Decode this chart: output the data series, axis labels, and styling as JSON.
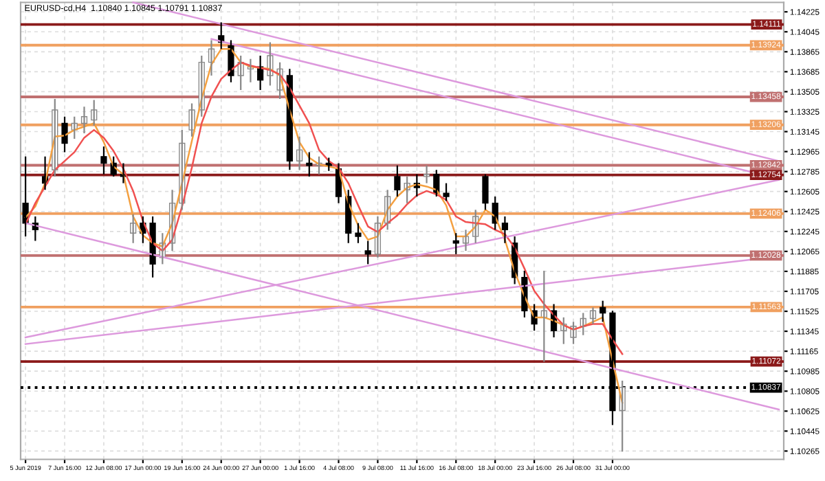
{
  "chart_data": {
    "type": "candlestick",
    "title": "EURUSD-cd,H4  1.10840 1.10845 1.10791 1.10837",
    "categories": [
      "5 Jun 2019",
      null,
      null,
      null,
      "7 Jun 16:00",
      null,
      null,
      null,
      "12 Jun 08:00",
      null,
      null,
      null,
      "17 Jun 00:00",
      null,
      null,
      null,
      "19 Jun 16:00",
      null,
      null,
      null,
      "24 Jun 00:00",
      null,
      null,
      null,
      "27 Jun 00:00",
      null,
      null,
      null,
      "1 Jul 16:00",
      null,
      null,
      null,
      "4 Jul 08:00",
      null,
      null,
      null,
      "9 Jul 08:00",
      null,
      null,
      null,
      "11 Jul 16:00",
      null,
      null,
      null,
      "16 Jul 08:00",
      null,
      null,
      null,
      "18 Jul 00:00",
      null,
      null,
      null,
      "23 Jul 16:00",
      null,
      null,
      null,
      "26 Jul 08:00",
      null,
      null,
      null,
      "31 Jul 00:00",
      null,
      null,
      null,
      null,
      null,
      null,
      null,
      null,
      null,
      null,
      null,
      null,
      null,
      null,
      null,
      null,
      null
    ],
    "ohlc": [
      [
        1.125,
        1.1292,
        1.122,
        1.1232
      ],
      [
        1.1232,
        1.1238,
        1.1216,
        1.1226
      ],
      [
        1.1274,
        1.1292,
        1.1262,
        1.1268
      ],
      [
        1.128,
        1.1344,
        1.1274,
        1.1334
      ],
      [
        1.1322,
        1.1328,
        1.1296,
        1.1304
      ],
      [
        1.1316,
        1.1328,
        1.1308,
        1.1322
      ],
      [
        1.1322,
        1.1337,
        1.1313,
        1.1328
      ],
      [
        1.1325,
        1.1343,
        1.132,
        1.1334
      ],
      [
        1.1292,
        1.1301,
        1.1276,
        1.1286
      ],
      [
        1.1286,
        1.1292,
        1.1274,
        1.1276
      ],
      [
        1.1276,
        1.1286,
        1.1268,
        1.1274
      ],
      [
        1.1223,
        1.124,
        1.1214,
        1.1232
      ],
      [
        1.1232,
        1.1238,
        1.1214,
        1.1223
      ],
      [
        1.1232,
        1.1238,
        1.1183,
        1.1195
      ],
      [
        1.1201,
        1.1223,
        1.1195,
        1.1214
      ],
      [
        1.1214,
        1.1262,
        1.1207,
        1.125
      ],
      [
        1.125,
        1.1316,
        1.1244,
        1.1304
      ],
      [
        1.1316,
        1.134,
        1.131,
        1.1334
      ],
      [
        1.1334,
        1.1383,
        1.1328,
        1.1377
      ],
      [
        1.1377,
        1.1397,
        1.1365,
        1.1389
      ],
      [
        1.1401,
        1.1413,
        1.1389,
        1.1395
      ],
      [
        1.1392,
        1.1397,
        1.1359,
        1.1365
      ],
      [
        1.1365,
        1.1383,
        1.1352,
        1.1377
      ],
      [
        1.1371,
        1.138,
        1.1359,
        1.1373
      ],
      [
        1.1373,
        1.1383,
        1.1352,
        1.1361
      ],
      [
        1.1365,
        1.1395,
        1.1356,
        1.1383
      ],
      [
        1.1352,
        1.1377,
        1.1344,
        1.1371
      ],
      [
        1.1365,
        1.1371,
        1.128,
        1.1288
      ],
      [
        1.1288,
        1.131,
        1.128,
        1.1298
      ],
      [
        1.1286,
        1.1296,
        1.1274,
        1.1284
      ],
      [
        1.1284,
        1.1292,
        1.1276,
        1.1286
      ],
      [
        1.1286,
        1.1291,
        1.1279,
        1.1284
      ],
      [
        1.1281,
        1.1286,
        1.125,
        1.1256
      ],
      [
        1.1256,
        1.1262,
        1.1214,
        1.1223
      ],
      [
        1.1223,
        1.1232,
        1.1214,
        1.122
      ],
      [
        1.1207,
        1.1216,
        1.1195,
        1.1204
      ],
      [
        1.1204,
        1.1238,
        1.1201,
        1.1232
      ],
      [
        1.1232,
        1.1262,
        1.1226,
        1.1256
      ],
      [
        1.1274,
        1.1284,
        1.1256,
        1.1262
      ],
      [
        1.1262,
        1.1274,
        1.125,
        1.1268
      ],
      [
        1.1268,
        1.1276,
        1.1256,
        1.1264
      ],
      [
        1.1274,
        1.1284,
        1.1268,
        1.1276
      ],
      [
        1.1276,
        1.128,
        1.1256,
        1.1259
      ],
      [
        1.1259,
        1.1268,
        1.1252,
        1.1256
      ],
      [
        1.1216,
        1.1223,
        1.1204,
        1.1214
      ],
      [
        1.1214,
        1.1226,
        1.1207,
        1.122
      ],
      [
        1.122,
        1.1244,
        1.1214,
        1.1238
      ],
      [
        1.1274,
        1.1276,
        1.1244,
        1.125
      ],
      [
        1.125,
        1.1256,
        1.1226,
        1.1232
      ],
      [
        1.1232,
        1.1238,
        1.1214,
        1.1226
      ],
      [
        1.1214,
        1.122,
        1.1177,
        1.1183
      ],
      [
        1.1183,
        1.1189,
        1.1147,
        1.1153
      ],
      [
        1.1153,
        1.1159,
        1.1135,
        1.1141
      ],
      [
        1.1147,
        1.1189,
        1.1107,
        1.1153
      ],
      [
        1.1153,
        1.1159,
        1.1129,
        1.1135
      ],
      [
        1.1135,
        1.1147,
        1.1123,
        1.1141
      ],
      [
        1.1129,
        1.1143,
        1.1123,
        1.1139
      ],
      [
        1.1139,
        1.1151,
        1.1131,
        1.1146
      ],
      [
        1.1146,
        1.1156,
        1.1141,
        1.1153
      ],
      [
        1.1156,
        1.1162,
        1.1143,
        1.1151
      ],
      [
        1.1151,
        1.1153,
        1.105,
        1.1063
      ],
      [
        1.1063,
        1.109,
        1.1026,
        1.1084
      ],
      null,
      null,
      null,
      null,
      null,
      null,
      null,
      null,
      null,
      null,
      null,
      null,
      null,
      null,
      null,
      null
    ],
    "series": [
      {
        "type": "line",
        "color": "#f4a040",
        "values": [
          1.1237,
          1.1247,
          1.1268,
          1.131,
          1.1311,
          1.1316,
          1.1319,
          1.1322,
          1.1305,
          1.1283,
          1.1276,
          1.1238,
          1.1221,
          1.1214,
          1.1211,
          1.1232,
          1.1268,
          1.1306,
          1.1344,
          1.1375,
          1.1389,
          1.1389,
          1.1377,
          1.1373,
          1.1372,
          1.1371,
          1.1365,
          1.1334,
          1.1305,
          1.1291,
          1.1285,
          1.1283,
          1.1281,
          1.125,
          1.123,
          1.1217,
          1.122,
          1.1244,
          1.1256,
          1.1264,
          1.1267,
          1.1265,
          1.1262,
          1.1248,
          1.122,
          1.122,
          1.1229,
          1.1244,
          1.1238,
          1.1217,
          1.1188,
          1.1166,
          1.1147,
          1.1147,
          1.1144,
          1.114,
          1.1136,
          1.1139,
          1.1143,
          1.1147,
          1.1108,
          1.107,
          null,
          null,
          null,
          null,
          null,
          null,
          null,
          null,
          null,
          null,
          null,
          null,
          null,
          null,
          null,
          null
        ]
      },
      {
        "type": "line",
        "color": "#f05050",
        "values": [
          1.1231,
          1.125,
          1.1265,
          1.128,
          1.1288,
          1.1296,
          1.1309,
          1.1316,
          1.1309,
          1.1297,
          1.1281,
          1.1261,
          1.1234,
          1.1214,
          1.1207,
          1.1217,
          1.1247,
          1.1282,
          1.1322,
          1.1346,
          1.1362,
          1.137,
          1.1377,
          1.1374,
          1.1372,
          1.137,
          1.1366,
          1.1354,
          1.1338,
          1.1322,
          1.1298,
          1.1288,
          1.1282,
          1.1268,
          1.1248,
          1.1229,
          1.1224,
          1.1232,
          1.1239,
          1.1249,
          1.1257,
          1.1261,
          1.1258,
          1.1253,
          1.1238,
          1.1233,
          1.1232,
          1.1231,
          1.1226,
          1.1222,
          1.121,
          1.1191,
          1.1171,
          1.1159,
          1.1149,
          1.114,
          1.1136,
          1.1139,
          1.1141,
          1.1141,
          1.1127,
          1.1114,
          null,
          null,
          null,
          null,
          null,
          null,
          null,
          null,
          null,
          null,
          null,
          null,
          null,
          null,
          null,
          null
        ]
      },
      {
        "type": "line",
        "color": "#dd99dd",
        "values": [
          null,
          null,
          null,
          null,
          null,
          null,
          null,
          null,
          null,
          null,
          null,
          1.1431,
          null,
          null,
          null,
          null,
          null,
          null,
          null,
          null,
          null,
          null,
          null,
          null,
          null,
          null,
          null,
          null,
          null,
          null,
          null,
          null,
          null,
          null,
          null,
          null,
          null,
          null,
          null,
          null,
          null,
          null,
          null,
          null,
          null,
          null,
          null,
          null,
          null,
          null,
          null,
          null,
          null,
          null,
          null,
          null,
          null,
          null,
          null,
          null,
          null,
          null,
          null,
          null,
          null,
          null,
          null,
          null,
          null,
          null,
          null,
          null,
          null,
          null,
          null,
          null,
          null,
          1.1288
        ]
      },
      {
        "type": "line",
        "color": "#dd99dd",
        "values": [
          null,
          null,
          null,
          null,
          null,
          null,
          null,
          null,
          null,
          null,
          null,
          null,
          null,
          null,
          null,
          null,
          null,
          null,
          null,
          1.1398,
          null,
          null,
          null,
          null,
          null,
          null,
          null,
          null,
          null,
          null,
          null,
          null,
          null,
          null,
          null,
          null,
          null,
          null,
          null,
          null,
          null,
          null,
          null,
          null,
          null,
          null,
          null,
          null,
          null,
          null,
          null,
          null,
          null,
          null,
          null,
          null,
          null,
          null,
          null,
          null,
          null,
          null,
          null,
          null,
          null,
          null,
          null,
          null,
          null,
          null,
          null,
          null,
          null,
          null,
          null,
          null,
          null,
          1.1272
        ]
      },
      {
        "type": "line",
        "color": "#dd99dd",
        "values": [
          1.1232,
          null,
          null,
          null,
          null,
          null,
          null,
          null,
          null,
          null,
          null,
          null,
          null,
          null,
          null,
          null,
          null,
          null,
          null,
          null,
          null,
          null,
          null,
          null,
          null,
          null,
          null,
          null,
          null,
          null,
          null,
          null,
          null,
          null,
          null,
          null,
          null,
          null,
          null,
          null,
          null,
          null,
          null,
          null,
          null,
          null,
          null,
          null,
          null,
          null,
          null,
          null,
          null,
          null,
          null,
          null,
          null,
          null,
          null,
          null,
          null,
          null,
          null,
          null,
          null,
          null,
          null,
          null,
          null,
          null,
          null,
          null,
          null,
          null,
          null,
          null,
          null,
          1.1064
        ]
      },
      {
        "type": "line",
        "color": "#dd99dd",
        "values": [
          1.1129,
          null,
          null,
          null,
          null,
          null,
          null,
          null,
          null,
          null,
          null,
          null,
          null,
          null,
          null,
          null,
          null,
          null,
          null,
          null,
          null,
          null,
          null,
          null,
          null,
          null,
          null,
          null,
          null,
          null,
          null,
          null,
          null,
          null,
          null,
          null,
          null,
          null,
          null,
          null,
          null,
          null,
          null,
          null,
          null,
          null,
          null,
          null,
          null,
          null,
          null,
          null,
          null,
          null,
          null,
          null,
          null,
          null,
          null,
          null,
          null,
          null,
          null,
          null,
          null,
          null,
          null,
          null,
          null,
          null,
          null,
          null,
          null,
          null,
          null,
          null,
          null,
          1.1271
        ]
      },
      {
        "type": "line",
        "color": "#dd99dd",
        "values": [
          1.1123,
          null,
          null,
          null,
          null,
          null,
          null,
          null,
          null,
          null,
          null,
          null,
          null,
          null,
          null,
          null,
          null,
          null,
          null,
          null,
          null,
          null,
          null,
          null,
          null,
          null,
          null,
          null,
          null,
          null,
          null,
          null,
          null,
          null,
          null,
          null,
          null,
          null,
          null,
          null,
          null,
          null,
          null,
          null,
          null,
          null,
          null,
          null,
          null,
          null,
          null,
          null,
          null,
          null,
          null,
          null,
          null,
          null,
          null,
          null,
          null,
          null,
          null,
          null,
          null,
          null,
          null,
          null,
          null,
          null,
          null,
          null,
          null,
          null,
          null,
          null,
          null,
          1.1202
        ]
      }
    ],
    "ref_lines": [
      {
        "axis": "y",
        "value": 1.14111,
        "label": "1.14111",
        "color": "#8b1a1a"
      },
      {
        "axis": "y",
        "value": 1.13924,
        "label": "1.13924",
        "color": "#f0a060"
      },
      {
        "axis": "y",
        "value": 1.13458,
        "label": "1.13458",
        "color": "#c07070"
      },
      {
        "axis": "y",
        "value": 1.13206,
        "label": "1.13206",
        "color": "#f0a060"
      },
      {
        "axis": "y",
        "value": 1.12842,
        "label": "1.12842",
        "color": "#c07070"
      },
      {
        "axis": "y",
        "value": 1.12754,
        "label": "1.12754",
        "color": "#8b1a1a"
      },
      {
        "axis": "y",
        "value": 1.12406,
        "label": "1.12406",
        "color": "#f0a060"
      },
      {
        "axis": "y",
        "value": 1.12028,
        "label": "1.12028",
        "color": "#c07070"
      },
      {
        "axis": "y",
        "value": 1.11563,
        "label": "1.11563",
        "color": "#f0a060"
      },
      {
        "axis": "y",
        "value": 1.11072,
        "label": "1.11072",
        "color": "#8b1a1a"
      },
      {
        "axis": "y",
        "value": 1.10837,
        "label": "1.10837",
        "color": "#000000",
        "line_style": "dotted"
      }
    ],
    "ylim": [
      1.1019,
      1.1431
    ],
    "yticks": [
      1.14225,
      1.14045,
      1.13865,
      1.13685,
      1.13505,
      1.13325,
      1.13145,
      1.12965,
      1.12785,
      1.12605,
      1.12425,
      1.12245,
      1.12065,
      1.11885,
      1.11705,
      1.11525,
      1.11345,
      1.11165,
      1.10985,
      1.10805,
      1.10625,
      1.10445,
      1.10265
    ],
    "grid": true
  }
}
